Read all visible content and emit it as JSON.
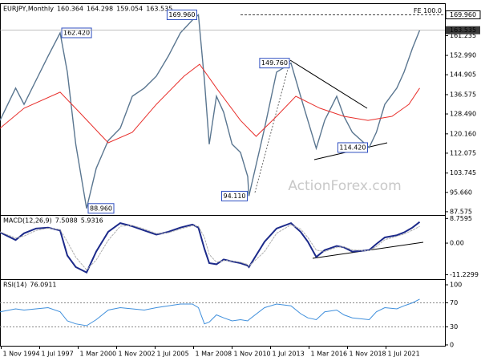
{
  "chart_data": [
    {
      "type": "line",
      "title": "EURJPY,Monthly",
      "ohlc": [
        160.364,
        164.298,
        159.054,
        163.535
      ],
      "xlim": [
        "1994-10",
        "2025-08"
      ],
      "ylim": [
        86.2,
        174.5
      ],
      "yticks": [
        87.575,
        {
          "value": 95.66,
          "label": "95.660"
        },
        103.745,
        112.075,
        {
          "value": 120.16,
          "label": "120.160"
        },
        {
          "value": 128.49,
          "label": "128.490"
        },
        136.575,
        144.905,
        {
          "value": 152.99,
          "label": "152.990"
        },
        161.235
      ],
      "x": [
        "1994-10",
        "1995-11",
        "1996-06",
        "1997-04",
        "1998-02",
        "1998-12",
        "1999-06",
        "2000-01",
        "2000-10",
        "2001-06",
        "2002-04",
        "2003-02",
        "2003-12",
        "2004-10",
        "2005-08",
        "2006-06",
        "2007-04",
        "2008-02",
        "2008-07",
        "2008-12",
        "2009-04",
        "2009-10",
        "2010-04",
        "2010-11",
        "2011-06",
        "2011-12",
        "2012-01",
        "2013-02",
        "2013-12",
        "2014-12",
        "2015-08",
        "2016-02",
        "2016-09",
        "2017-04",
        "2018-02",
        "2018-08",
        "2019-03",
        "2020-05",
        "2020-11",
        "2021-06",
        "2022-04",
        "2022-10",
        "2023-05",
        "2023-11"
      ],
      "series": [
        {
          "color": "#5a7690",
          "values": [
            125.8,
            139.3,
            132.5,
            142.6,
            152.7,
            162.42,
            146.0,
            115.8,
            88.96,
            105.7,
            117.4,
            122.5,
            135.9,
            139.3,
            144.3,
            152.7,
            162.4,
            167.8,
            169.96,
            142.6,
            115.8,
            135.9,
            129.2,
            115.8,
            112.4,
            102.3,
            94.11,
            122.5,
            146.0,
            149.76,
            135.9,
            125.8,
            114.1,
            125.8,
            135.9,
            127.5,
            120.8,
            114.42,
            120.8,
            132.5,
            139.3,
            146.0,
            156.0,
            163.535
          ],
          "value_labels": [
            null,
            null,
            null,
            null,
            null,
            "162.420",
            null,
            null,
            "88.960",
            null,
            null,
            null,
            null,
            null,
            null,
            null,
            null,
            null,
            "169.960",
            null,
            null,
            null,
            null,
            null,
            null,
            null,
            "94.110",
            null,
            null,
            "149.760",
            null,
            null,
            null,
            null,
            null,
            null,
            null,
            "114.420",
            null,
            null,
            null,
            null,
            null,
            null
          ]
        },
        {
          "color": "#e8302c",
          "x": [
            "1994-10",
            "1996-06",
            "1998-12",
            "2000-04",
            "2002-04",
            "2003-12",
            "2005-08",
            "2007-07",
            "2008-08",
            "2009-10",
            "2011-06",
            "2012-07",
            "2013-12",
            "2015-04",
            "2016-12",
            "2018-08",
            "2020-04",
            "2021-12",
            "2023-02",
            "2023-11"
          ],
          "values": [
            122.5,
            130.9,
            137.6,
            129.2,
            116.4,
            120.8,
            132.5,
            144.3,
            149.3,
            139.3,
            125.8,
            119.1,
            127.5,
            135.9,
            130.9,
            127.5,
            125.8,
            127.5,
            132.5,
            139.3
          ]
        }
      ],
      "reference_line": {
        "name": "FE 100.0",
        "value": 169.96,
        "label": "169.960"
      },
      "last_price": {
        "value": 163.535,
        "label": "163.535"
      },
      "watermark": "ActionForex.com"
    },
    {
      "type": "line",
      "title": "MACD(12,26,9)",
      "readings": [
        7.5088,
        5.9316
      ],
      "xlim": [
        "1994-10",
        "2025-08"
      ],
      "ylim": [
        -12.8,
        9.7
      ],
      "yticks": [
        8.7595,
        {
          "value": 0,
          "label": "0.00"
        },
        -11.2299
      ],
      "x": [
        "1994-10",
        "1995-11",
        "1996-06",
        "1997-04",
        "1998-02",
        "1998-12",
        "1999-06",
        "2000-01",
        "2000-10",
        "2001-06",
        "2002-04",
        "2003-02",
        "2003-12",
        "2004-10",
        "2005-08",
        "2006-06",
        "2007-04",
        "2008-02",
        "2008-07",
        "2008-12",
        "2009-04",
        "2009-10",
        "2010-04",
        "2010-11",
        "2011-06",
        "2011-12",
        "2012-01",
        "2013-02",
        "2013-12",
        "2014-12",
        "2015-08",
        "2016-02",
        "2016-09",
        "2017-04",
        "2018-02",
        "2018-08",
        "2019-03",
        "2020-05",
        "2020-11",
        "2021-06",
        "2022-04",
        "2022-10",
        "2023-05",
        "2023-11"
      ],
      "series": [
        {
          "color": "#1c2a8a",
          "values": [
            3.8,
            1.1,
            3.5,
            5.2,
            5.5,
            4.5,
            -4.4,
            -8.5,
            -10.4,
            -3,
            4,
            7.1,
            6.0,
            4.5,
            3.0,
            4.0,
            5.5,
            6.6,
            5.5,
            -2,
            -7.1,
            -7.5,
            -5.8,
            -6.5,
            -7.1,
            -8,
            -8.5,
            0.5,
            5.2,
            7.1,
            4.0,
            0.5,
            -4.9,
            -2.5,
            -1.0,
            -1.5,
            -3.0,
            -2.5,
            -0.3,
            2.0,
            2.8,
            3.8,
            5.5,
            7.5088
          ]
        },
        {
          "color": "#b0b0b0",
          "values": [
            4.0,
            1.8,
            2.5,
            4.5,
            5.3,
            4.8,
            0.5,
            -5,
            -9.5,
            -6,
            1,
            6,
            6.3,
            5,
            3.4,
            3.7,
            5,
            6.2,
            6.0,
            2,
            -4,
            -6.8,
            -6.2,
            -6.3,
            -6.8,
            -7.6,
            -8.2,
            -3,
            3.5,
            6.5,
            5,
            2,
            -2.5,
            -3,
            -1.5,
            -1.3,
            -2.4,
            -2.7,
            -1.2,
            1.2,
            2.4,
            3.2,
            4.6,
            5.9316
          ]
        }
      ]
    },
    {
      "type": "line",
      "title": "RSI(14)",
      "readings": [
        76.0911
      ],
      "xlim": [
        "1994-10",
        "2025-08"
      ],
      "ylim": [
        -1.4,
        108
      ],
      "yticks": [
        0,
        30,
        70,
        100
      ],
      "levels": [
        30,
        70
      ],
      "x": [
        "1994-10",
        "1995-11",
        "1996-06",
        "1997-04",
        "1998-02",
        "1998-12",
        "1999-06",
        "2000-01",
        "2000-10",
        "2001-06",
        "2002-04",
        "2003-02",
        "2003-12",
        "2004-10",
        "2005-08",
        "2006-06",
        "2007-04",
        "2008-02",
        "2008-07",
        "2008-12",
        "2009-04",
        "2009-10",
        "2010-04",
        "2010-11",
        "2011-06",
        "2011-12",
        "2012-01",
        "2013-02",
        "2013-12",
        "2014-12",
        "2015-08",
        "2016-02",
        "2016-09",
        "2017-04",
        "2018-02",
        "2018-08",
        "2019-03",
        "2020-05",
        "2020-11",
        "2021-06",
        "2022-04",
        "2022-10",
        "2023-05",
        "2023-11"
      ],
      "series": [
        {
          "color": "#3f8fdc",
          "values": [
            55,
            60,
            58,
            60,
            62,
            55,
            40,
            35,
            32,
            42,
            58,
            62,
            60,
            58,
            62,
            65,
            68,
            68,
            62,
            35,
            38,
            50,
            45,
            40,
            42,
            40,
            42,
            62,
            68,
            65,
            52,
            45,
            42,
            55,
            58,
            50,
            45,
            42,
            55,
            62,
            60,
            65,
            70,
            76.0911
          ]
        }
      ],
      "xticks": [
        {
          "value": "1994-11",
          "label": "1 Nov 1994"
        },
        {
          "value": "1997-07",
          "label": "1 Jul 1997"
        },
        {
          "value": "2000-03",
          "label": "1 Mar 2000"
        },
        {
          "value": "2002-11",
          "label": "1 Nov 2002"
        },
        {
          "value": "2005-07",
          "label": "1 Jul 2005"
        },
        {
          "value": "2008-03",
          "label": "1 Mar 2008"
        },
        {
          "value": "2010-11",
          "label": "1 Nov 2010"
        },
        {
          "value": "2013-07",
          "label": "1 Jul 2013"
        },
        {
          "value": "2016-03",
          "label": "1 Mar 2016"
        },
        {
          "value": "2018-11",
          "label": "1 Nov 2018"
        },
        {
          "value": "2021-07",
          "label": "1 Jul 2021"
        }
      ]
    }
  ]
}
